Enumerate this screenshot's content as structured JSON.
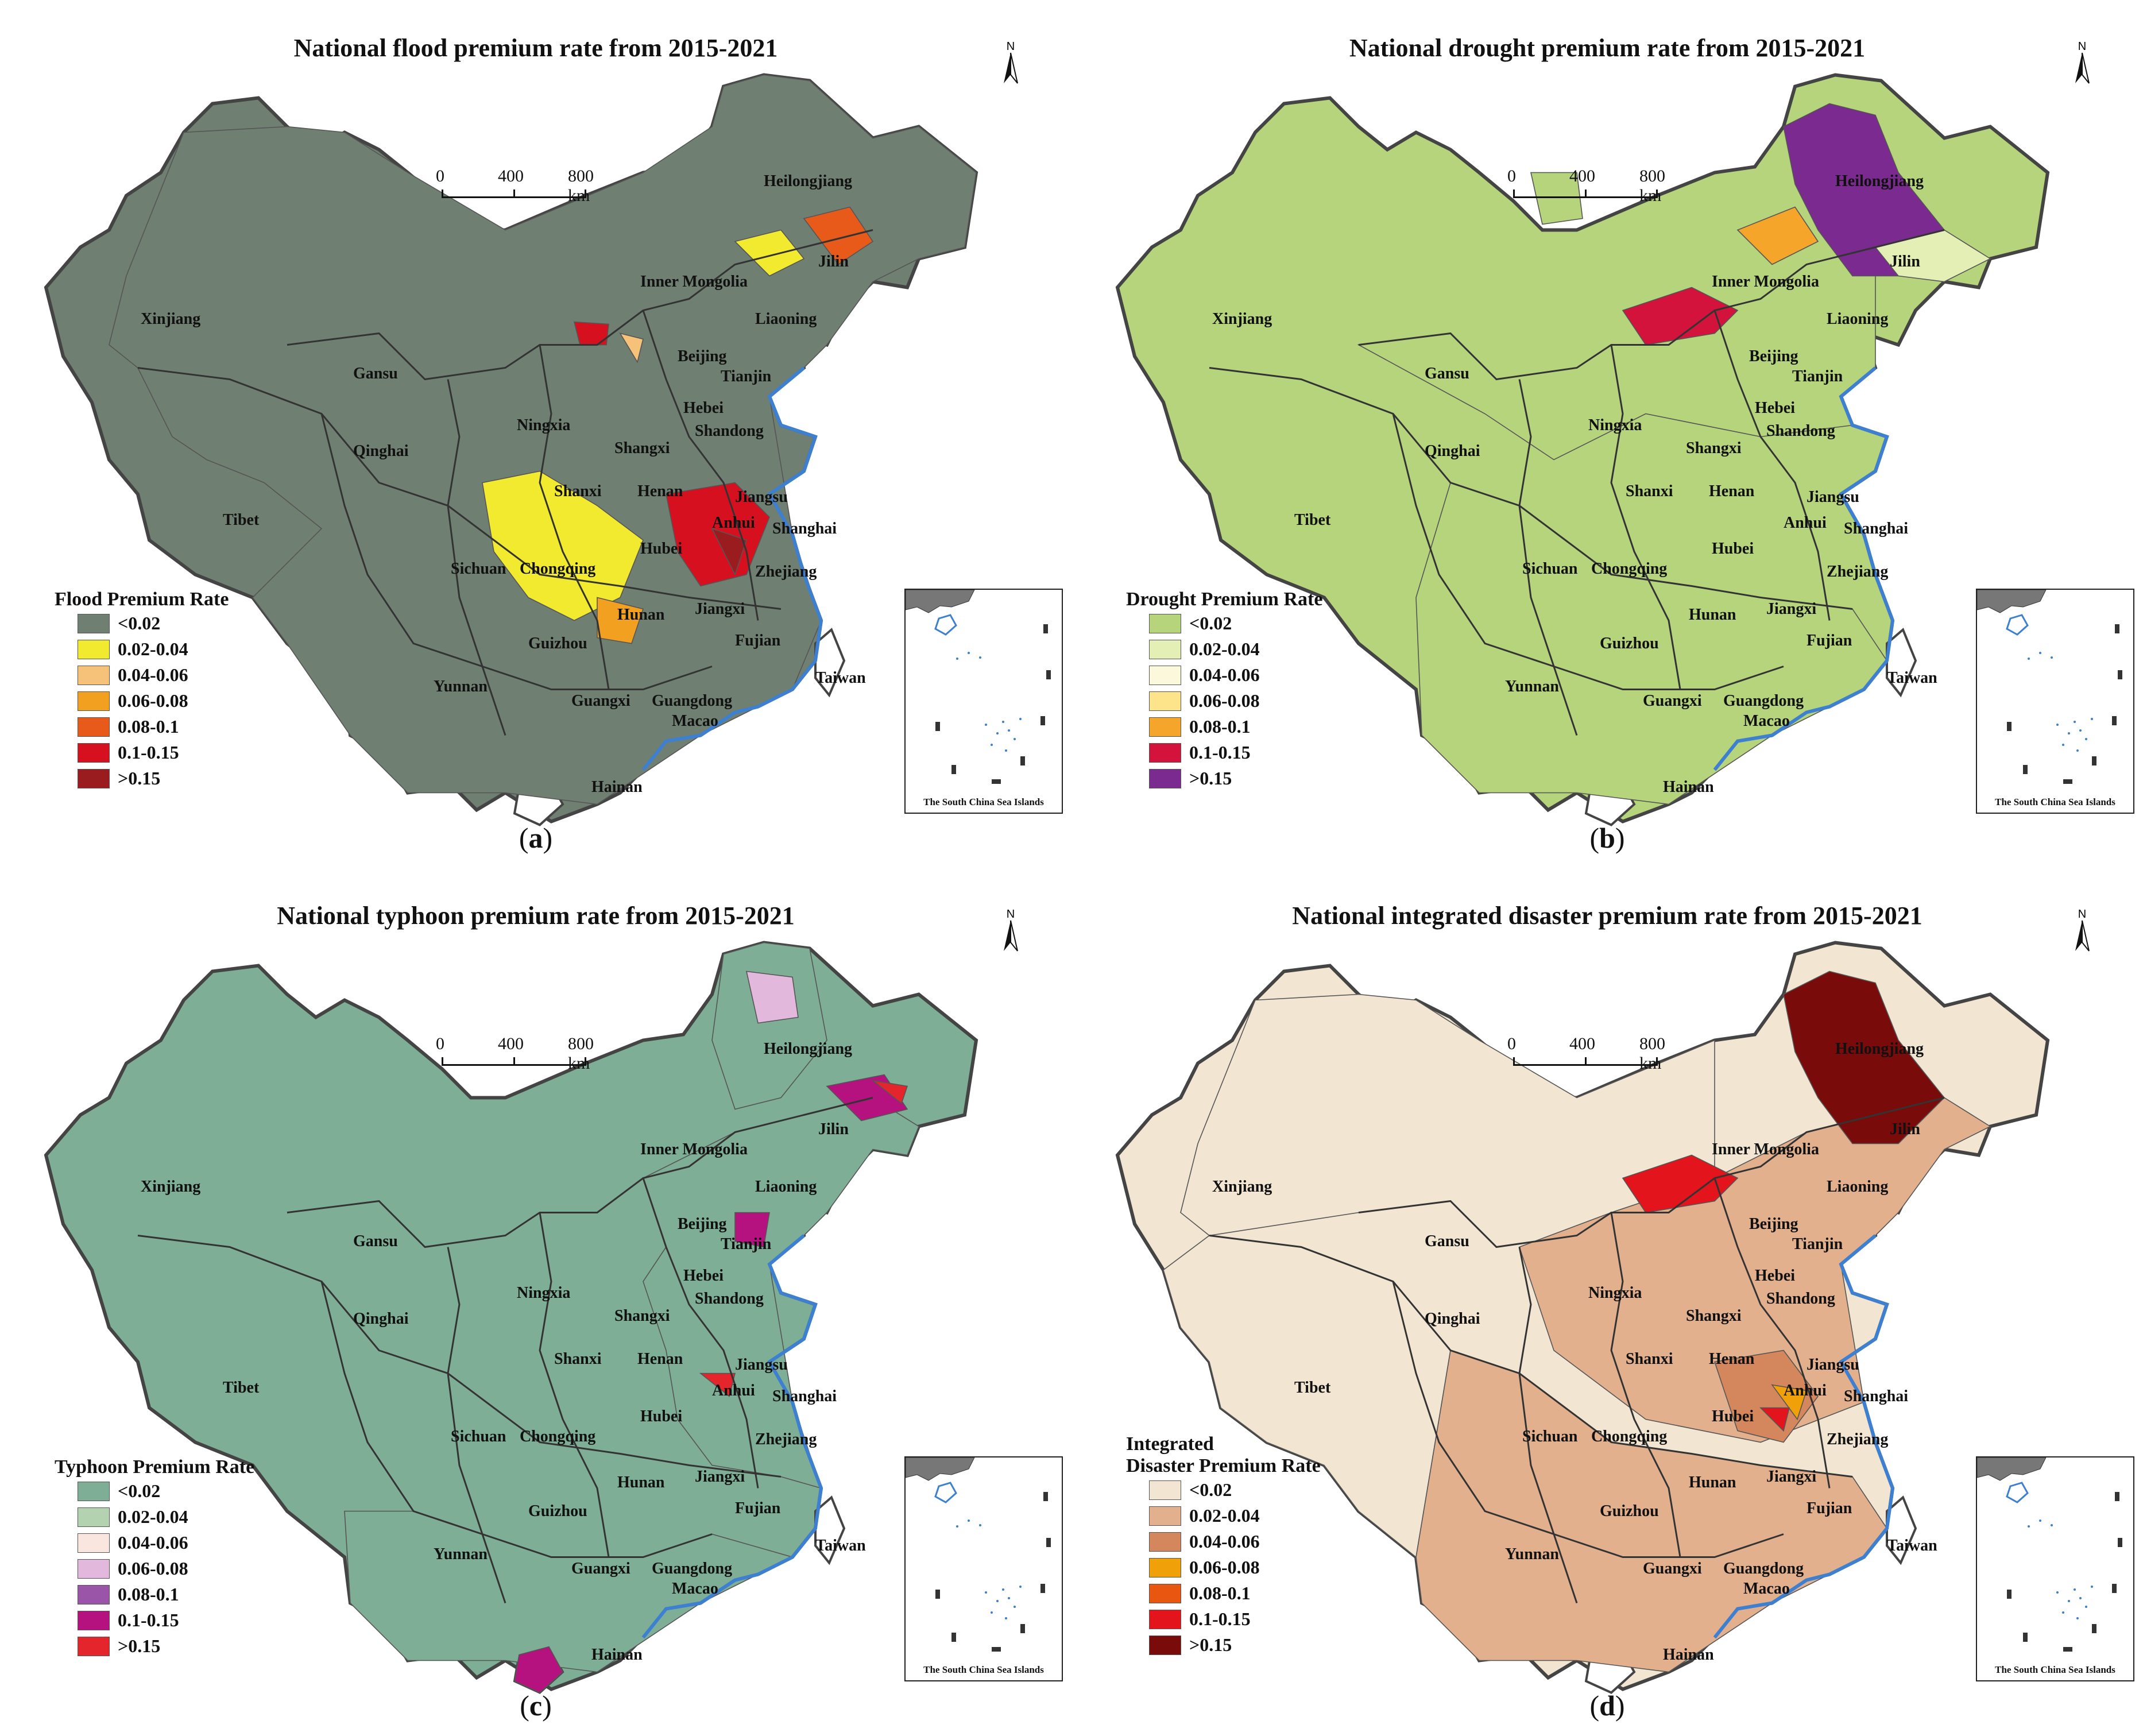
{
  "panels": [
    {
      "id": "a",
      "title": "National flood premium rate from 2015-2021",
      "letter": "a",
      "legend_title": "Flood Premium Rate",
      "legend_title_line2": "",
      "base_color": "#6f7f72",
      "legend": [
        {
          "label": "<0.02",
          "color": "#6f7f72"
        },
        {
          "label": "0.02-0.04",
          "color": "#f2ea2e"
        },
        {
          "label": "0.04-0.06",
          "color": "#f6c27a"
        },
        {
          "label": "0.06-0.08",
          "color": "#f2a01f"
        },
        {
          "label": "0.08-0.1",
          "color": "#e85a1a"
        },
        {
          "label": "0.1-0.15",
          "color": "#d7101f"
        },
        {
          "label": ">0.15",
          "color": "#9b1c1f"
        }
      ]
    },
    {
      "id": "b",
      "title": "National drought premium rate from 2015-2021",
      "letter": "b",
      "legend_title": "Drought Premium Rate",
      "legend_title_line2": "",
      "base_color": "#b5d47c",
      "legend": [
        {
          "label": "<0.02",
          "color": "#b5d47c"
        },
        {
          "label": "0.02-0.04",
          "color": "#e3efb5"
        },
        {
          "label": "0.04-0.06",
          "color": "#fbf8dc"
        },
        {
          "label": "0.06-0.08",
          "color": "#fde38a"
        },
        {
          "label": "0.08-0.1",
          "color": "#f4a52a"
        },
        {
          "label": "0.1-0.15",
          "color": "#d3133b"
        },
        {
          "label": ">0.15",
          "color": "#7b2a8f"
        }
      ]
    },
    {
      "id": "c",
      "title": "National typhoon premium rate from 2015-2021",
      "letter": "c",
      "legend_title": "Typhoon Premium Rate",
      "legend_title_line2": "",
      "base_color": "#7fae96",
      "legend": [
        {
          "label": "<0.02",
          "color": "#7fae96"
        },
        {
          "label": "0.02-0.04",
          "color": "#b3d3b0"
        },
        {
          "label": "0.04-0.06",
          "color": "#f8e6df"
        },
        {
          "label": "0.06-0.08",
          "color": "#e2b9dd"
        },
        {
          "label": "0.08-0.1",
          "color": "#9b55a8"
        },
        {
          "label": "0.1-0.15",
          "color": "#b5127f"
        },
        {
          "label": ">0.15",
          "color": "#e5252c"
        }
      ]
    },
    {
      "id": "d",
      "title": "National integrated disaster premium rate from 2015-2021",
      "letter": "d",
      "legend_title": "Integrated",
      "legend_title_line2": "Disaster Premium Rate",
      "base_color": "#f2e6d2",
      "legend": [
        {
          "label": "<0.02",
          "color": "#f2e6d2"
        },
        {
          "label": "0.02-0.04",
          "color": "#e3b08e"
        },
        {
          "label": "0.04-0.06",
          "color": "#d4865d"
        },
        {
          "label": "0.06-0.08",
          "color": "#f0a10a"
        },
        {
          "label": "0.08-0.1",
          "color": "#e8560f"
        },
        {
          "label": "0.1-0.15",
          "color": "#e3141b"
        },
        {
          "label": ">0.15",
          "color": "#7a0b0b"
        }
      ]
    }
  ],
  "scale": {
    "t0": "0",
    "t1": "400",
    "t2": "800 km"
  },
  "north_letter": "N",
  "inset_label": "The South China Sea Islands",
  "provinces": [
    {
      "key": "heilongjiang",
      "label": "Heilongjiang"
    },
    {
      "key": "jilin",
      "label": "Jilin"
    },
    {
      "key": "inner_mongolia",
      "label": "Inner Mongolia"
    },
    {
      "key": "liaoning",
      "label": "Liaoning"
    },
    {
      "key": "xinjiang",
      "label": "Xinjiang"
    },
    {
      "key": "gansu",
      "label": "Gansu"
    },
    {
      "key": "beijing",
      "label": "Beijing"
    },
    {
      "key": "tianjin",
      "label": "Tianjin"
    },
    {
      "key": "hebei",
      "label": "Hebei"
    },
    {
      "key": "ningxia",
      "label": "Ningxia"
    },
    {
      "key": "shangxi",
      "label": "Shangxi"
    },
    {
      "key": "shandong",
      "label": "Shandong"
    },
    {
      "key": "qinghai",
      "label": "Qinghai"
    },
    {
      "key": "shanxi",
      "label": "Shanxi"
    },
    {
      "key": "henan",
      "label": "Henan"
    },
    {
      "key": "jiangsu",
      "label": "Jiangsu"
    },
    {
      "key": "tibet",
      "label": "Tibet"
    },
    {
      "key": "anhui",
      "label": "Anhui"
    },
    {
      "key": "shanghai",
      "label": "Shanghai"
    },
    {
      "key": "sichuan",
      "label": "Sichuan"
    },
    {
      "key": "chongqing",
      "label": "Chongqing"
    },
    {
      "key": "hubei",
      "label": "Hubei"
    },
    {
      "key": "zhejiang",
      "label": "Zhejiang"
    },
    {
      "key": "hunan",
      "label": "Hunan"
    },
    {
      "key": "jiangxi",
      "label": "Jiangxi"
    },
    {
      "key": "guizhou",
      "label": "Guizhou"
    },
    {
      "key": "fujian",
      "label": "Fujian"
    },
    {
      "key": "yunnan",
      "label": "Yunnan"
    },
    {
      "key": "taiwan",
      "label": "Taiwan"
    },
    {
      "key": "guangxi",
      "label": "Guangxi"
    },
    {
      "key": "guangdong",
      "label": "Guangdong"
    },
    {
      "key": "macao",
      "label": "Macao"
    },
    {
      "key": "hainan",
      "label": "Hainan"
    }
  ]
}
